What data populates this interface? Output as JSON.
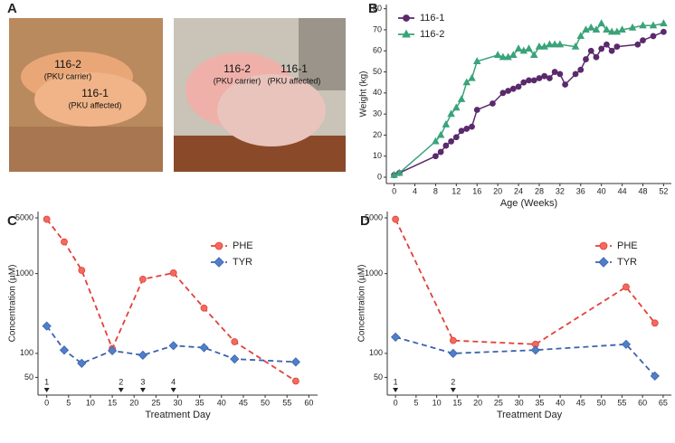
{
  "panel_a": {
    "label": "A",
    "photos": [
      {
        "pigs": [
          {
            "id": "116-2",
            "status": "(PKU carrier)"
          },
          {
            "id": "116-1",
            "status": "(PKU affected)"
          }
        ]
      },
      {
        "pigs": [
          {
            "id": "116-2",
            "status": "(PKU carrier)"
          },
          {
            "id": "116-1",
            "status": "(PKU affected)"
          }
        ]
      }
    ]
  },
  "chart_data": [
    {
      "type": "line",
      "panel_label": "B",
      "x_label": "Age (Weeks)",
      "y_label": "Weight (kg)",
      "log_y": false,
      "legend": "upper left",
      "xlim": [
        -1.5,
        53.5
      ],
      "xticks": [
        0,
        4,
        8,
        12,
        16,
        20,
        24,
        28,
        32,
        36,
        40,
        44,
        48,
        52
      ],
      "ylim": [
        -3,
        82
      ],
      "yticks": [
        0,
        10,
        20,
        30,
        40,
        50,
        60,
        70,
        80
      ],
      "series": [
        {
          "name": "116-1",
          "color": "#5a2a6c",
          "marker": "circle",
          "dashed": false,
          "x": [
            0,
            1,
            8,
            9,
            10,
            11,
            12,
            13,
            14,
            15,
            16,
            19,
            21,
            22,
            23,
            24,
            25,
            26,
            27,
            28,
            29,
            30,
            31,
            32,
            33,
            35,
            36,
            37,
            38,
            39,
            40,
            41,
            42,
            43,
            47,
            48,
            50,
            52
          ],
          "values": [
            1,
            2,
            10,
            12,
            15,
            17,
            19,
            22,
            23,
            24,
            32,
            35,
            40,
            41,
            42,
            43,
            45,
            46,
            46,
            47,
            48,
            47,
            50,
            49,
            44,
            49,
            51,
            56,
            60,
            57,
            61,
            63,
            60,
            62,
            63,
            65,
            67,
            69
          ]
        },
        {
          "name": "116-2",
          "color": "#3aa37a",
          "marker": "triangle",
          "dashed": false,
          "x": [
            0,
            1,
            8,
            9,
            10,
            11,
            12,
            13,
            14,
            15,
            16,
            20,
            21,
            22,
            23,
            24,
            25,
            26,
            27,
            28,
            29,
            30,
            31,
            32,
            35,
            36,
            37,
            38,
            39,
            40,
            41,
            42,
            43,
            44,
            46,
            48,
            50,
            52
          ],
          "values": [
            1,
            2,
            17,
            20,
            25,
            30,
            33,
            37,
            45,
            47,
            55,
            58,
            57,
            57,
            58,
            61,
            60,
            61,
            58,
            62,
            62,
            63,
            63,
            63,
            62,
            67,
            70,
            71,
            70,
            73,
            70,
            69,
            69,
            70,
            71,
            72,
            72,
            73
          ]
        }
      ]
    },
    {
      "type": "line",
      "panel_label": "C",
      "x_label": "Treatment Day",
      "y_label": "Concentration (µM)",
      "log_y": true,
      "legend": "center right",
      "xlim": [
        -2,
        62
      ],
      "xticks": [
        0,
        5,
        10,
        15,
        20,
        25,
        30,
        35,
        40,
        45,
        50,
        55,
        60
      ],
      "ylim": [
        30,
        6000
      ],
      "yticks": [
        50,
        100,
        1000,
        5000
      ],
      "doses": [
        {
          "day": 0,
          "label": "1"
        },
        {
          "day": 17,
          "label": "2"
        },
        {
          "day": 22,
          "label": "3"
        },
        {
          "day": 29,
          "label": "4"
        }
      ],
      "series": [
        {
          "name": "PHE",
          "color": "#e2403a",
          "marker": "circle",
          "dashed": true,
          "x": [
            0,
            4,
            8,
            15,
            22,
            29,
            36,
            43,
            57
          ],
          "values": [
            4800,
            2500,
            1100,
            115,
            850,
            1020,
            370,
            140,
            45
          ]
        },
        {
          "name": "TYR",
          "color": "#3b63ad",
          "marker": "diamond",
          "dashed": true,
          "x": [
            0,
            4,
            8,
            15,
            22,
            29,
            36,
            43,
            57
          ],
          "values": [
            220,
            110,
            75,
            108,
            95,
            125,
            118,
            85,
            78
          ]
        }
      ]
    },
    {
      "type": "line",
      "panel_label": "D",
      "x_label": "Treatment Day",
      "y_label": "Concentration (µM)",
      "log_y": true,
      "legend": "upper right",
      "xlim": [
        -2,
        67
      ],
      "xticks": [
        0,
        5,
        10,
        15,
        20,
        25,
        30,
        35,
        40,
        45,
        50,
        55,
        60,
        65
      ],
      "ylim": [
        30,
        6000
      ],
      "yticks": [
        50,
        100,
        1000,
        5000
      ],
      "doses": [
        {
          "day": 0,
          "label": "1"
        },
        {
          "day": 14,
          "label": "2"
        }
      ],
      "series": [
        {
          "name": "PHE",
          "color": "#e2403a",
          "marker": "circle",
          "dashed": true,
          "x": [
            0,
            14,
            34,
            56,
            63
          ],
          "values": [
            4800,
            145,
            130,
            680,
            240
          ]
        },
        {
          "name": "TYR",
          "color": "#3b63ad",
          "marker": "diamond",
          "dashed": true,
          "x": [
            0,
            14,
            34,
            56,
            63
          ],
          "values": [
            160,
            100,
            110,
            130,
            52
          ]
        }
      ]
    }
  ]
}
